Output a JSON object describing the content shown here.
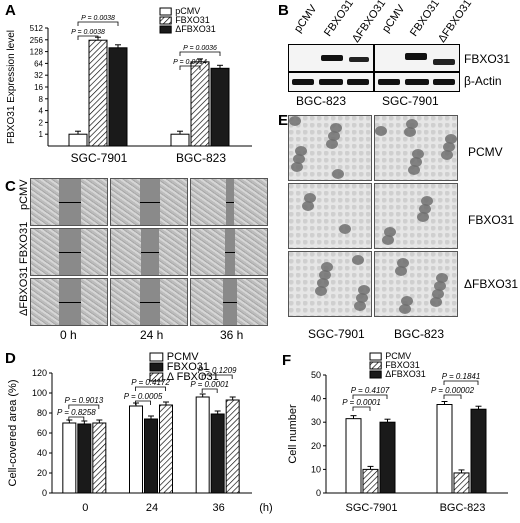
{
  "panel_letters": {
    "a": "A",
    "b": "B",
    "c": "C",
    "d": "D",
    "e": "E",
    "f": "F"
  },
  "chart_data": [
    {
      "panel": "A",
      "type": "bar",
      "ylabel": "FBXO31 Expression level",
      "yscale": "log2",
      "ylim": [
        0.5,
        512
      ],
      "yticks": [
        "512",
        "256",
        "128",
        "64",
        "32",
        "16",
        "8",
        "4",
        "2",
        "1"
      ],
      "categories": [
        "SGC-7901",
        "BGC-823"
      ],
      "series": [
        {
          "name": "pCMV",
          "values": [
            1,
            1
          ],
          "color": "#ffffff",
          "pattern": "none"
        },
        {
          "name": "FBXO31",
          "values": [
            250,
            70
          ],
          "color": "#ffffff",
          "pattern": "hatch"
        },
        {
          "name": "ΔFBXO31",
          "values": [
            160,
            48
          ],
          "color": "#1a1a1a",
          "pattern": "none"
        }
      ],
      "annotations": [
        "P = 0.0038",
        "P = 0.0038",
        "P = 0.0036",
        "P = 0.0014"
      ],
      "legend_position": "top-right"
    },
    {
      "panel": "D",
      "type": "bar",
      "ylabel": "Cell-covered area (%)",
      "xlabel": "(h)",
      "ylim": [
        0,
        120
      ],
      "yticks": [
        "0",
        "20",
        "40",
        "60",
        "80",
        "100",
        "120"
      ],
      "categories": [
        "0",
        "24",
        "36"
      ],
      "series": [
        {
          "name": "PCMV",
          "values": [
            70,
            87,
            96
          ],
          "color": "#ffffff",
          "pattern": "none"
        },
        {
          "name": "FBXO31",
          "values": [
            69,
            74,
            79
          ],
          "color": "#1a1a1a",
          "pattern": "none"
        },
        {
          "name": "Δ FBXO31",
          "values": [
            70,
            88,
            93
          ],
          "color": "#ffffff",
          "pattern": "hatch"
        }
      ],
      "annotations": [
        "P = 0.9013",
        "P = 0.8258",
        "P = 0.4172",
        "P = 0.0005",
        "P = 0.1209",
        "P = 0.0001"
      ],
      "legend_position": "top-right"
    },
    {
      "panel": "F",
      "type": "bar",
      "ylabel": "Cell number",
      "ylim": [
        0,
        50
      ],
      "yticks": [
        "0",
        "10",
        "20",
        "30",
        "40",
        "50"
      ],
      "categories": [
        "SGC-7901",
        "BGC-823"
      ],
      "series": [
        {
          "name": "PCMV",
          "values": [
            31.5,
            37.5
          ],
          "color": "#ffffff",
          "pattern": "none"
        },
        {
          "name": "FBXO31",
          "values": [
            10,
            8.5
          ],
          "color": "#ffffff",
          "pattern": "hatch"
        },
        {
          "name": "ΔFBXO31",
          "values": [
            30,
            35.5
          ],
          "color": "#1a1a1a",
          "pattern": "none"
        }
      ],
      "annotations": [
        "P = 0.4107",
        "P = 0.0001",
        "P = 0.1841",
        "P = 0.00002"
      ],
      "legend_position": "top-right"
    }
  ],
  "panel_b": {
    "lane_labels": [
      "pCMV",
      "FBXO31",
      "ΔFBXO31",
      "pCMV",
      "FBXO31",
      "ΔFBXO31"
    ],
    "row_labels": [
      "FBXO31",
      "β-Actin"
    ],
    "cell_lines": [
      "BGC-823",
      "SGC-7901"
    ]
  },
  "panel_c": {
    "row_labels": [
      "pCMV",
      "FBXO31",
      "ΔFBXO31"
    ],
    "col_labels": [
      "0 h",
      "24 h",
      "36 h"
    ]
  },
  "panel_e": {
    "row_labels": [
      "PCMV",
      "FBXO31",
      "ΔFBXO31"
    ],
    "col_labels": [
      "SGC-7901",
      "BGC-823"
    ]
  }
}
